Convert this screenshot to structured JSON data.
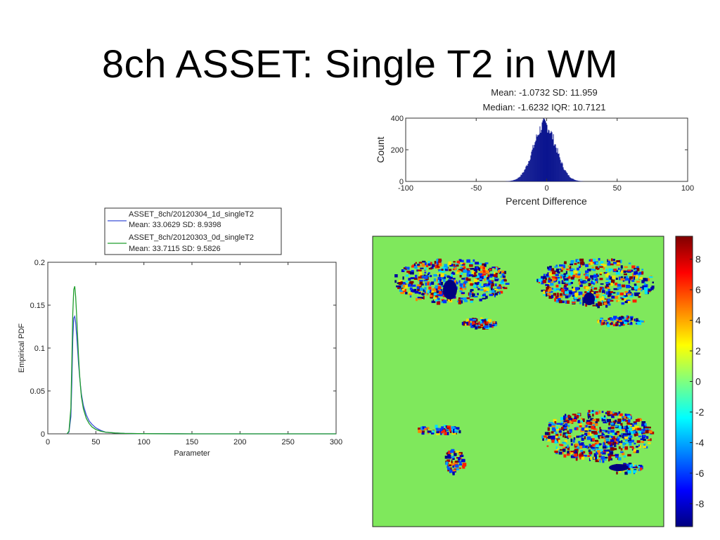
{
  "slide": {
    "title": "8ch ASSET: Single T2 in WM"
  },
  "colors": {
    "background": "#ffffff",
    "series_blue": "#3a4fd6",
    "series_green": "#1f9e2c",
    "histogram": "#0a148f",
    "map_background": "#7fe85c"
  },
  "chart_data": [
    {
      "type": "line",
      "title": "",
      "xlabel": "Parameter",
      "ylabel": "Empirical PDF",
      "xlim": [
        0,
        300
      ],
      "ylim": [
        0,
        0.2
      ],
      "xticks": [
        "0",
        "50",
        "100",
        "150",
        "200",
        "250",
        "300"
      ],
      "yticks": [
        "0",
        "0.05",
        "0.1",
        "0.15",
        "0.2"
      ],
      "legend_position": "top",
      "x": [
        20,
        22,
        24,
        25,
        26,
        27,
        28,
        29,
        30,
        31,
        32,
        33,
        34,
        35,
        37,
        40,
        43,
        46,
        50,
        55,
        60,
        70,
        80,
        100,
        150,
        200,
        300
      ],
      "series": [
        {
          "name": "ASSET_8ch/20120304_1d_singleT2",
          "stats": "Mean: 33.0629 SD: 8.9398",
          "color": "#3a4fd6",
          "values": [
            0,
            0.002,
            0.02,
            0.06,
            0.11,
            0.135,
            0.137,
            0.13,
            0.115,
            0.098,
            0.082,
            0.068,
            0.056,
            0.046,
            0.033,
            0.022,
            0.015,
            0.011,
            0.007,
            0.004,
            0.002,
            0.001,
            0.0005,
            0.0002,
            0,
            0,
            0
          ]
        },
        {
          "name": "ASSET_8ch/20120303_0d_singleT2",
          "stats": "Mean: 33.7115 SD: 9.5826",
          "color": "#1f9e2c",
          "values": [
            0,
            0.003,
            0.03,
            0.085,
            0.14,
            0.168,
            0.172,
            0.16,
            0.138,
            0.113,
            0.09,
            0.07,
            0.055,
            0.043,
            0.029,
            0.018,
            0.012,
            0.008,
            0.005,
            0.003,
            0.002,
            0.001,
            0.0005,
            0.0002,
            0,
            0,
            0
          ]
        }
      ]
    },
    {
      "type": "bar",
      "title": "",
      "annotation_line1": "Mean: -1.0732 SD: 11.959",
      "annotation_line2": "Median: -1.6232 IQR: 10.7121",
      "xlabel": "Percent Difference",
      "ylabel": "Count",
      "xlim": [
        -100,
        100
      ],
      "ylim": [
        0,
        400
      ],
      "xticks": [
        "-100",
        "-50",
        "0",
        "50",
        "100"
      ],
      "yticks": [
        "0",
        "200",
        "400"
      ],
      "distribution": {
        "center": -1.6,
        "sd": 8,
        "peak": 360
      }
    },
    {
      "type": "heatmap",
      "title": "",
      "colorbar_ticks": [
        "8",
        "6",
        "4",
        "2",
        "0",
        "-2",
        "-4",
        "-6",
        "-8"
      ],
      "colorbar_range": [
        -9.5,
        9.5
      ],
      "colormap": "jet"
    }
  ]
}
